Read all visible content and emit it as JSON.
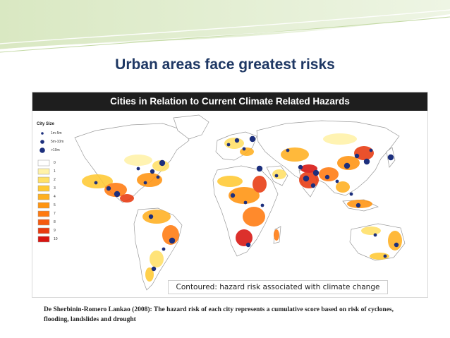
{
  "slide": {
    "title": "Urban areas face greatest risks",
    "source_note": "De Sherbinin-Romero Lankao (2008): The hazard risk of each city represents a cumulative score based on risk of cyclones, flooding, landslides and drought"
  },
  "map": {
    "header": "Cities in Relation to Current Climate Related Hazards",
    "caption": "Contoured: hazard risk associated with climate change",
    "legend": {
      "title": "City Size",
      "city_sizes": [
        {
          "label": "1m-5m",
          "size": "small"
        },
        {
          "label": "5m-10m",
          "size": "medium"
        },
        {
          "label": ">10m",
          "size": "large"
        }
      ],
      "hazard_classes": [
        {
          "label": "0",
          "color": "#ffffff"
        },
        {
          "label": "1",
          "color": "#fff2a8"
        },
        {
          "label": "2",
          "color": "#ffe066"
        },
        {
          "label": "3",
          "color": "#ffc933"
        },
        {
          "label": "4",
          "color": "#ffb020"
        },
        {
          "label": "5",
          "color": "#ff9410"
        },
        {
          "label": "7",
          "color": "#ff7a10"
        },
        {
          "label": "8",
          "color": "#f55a10"
        },
        {
          "label": "9",
          "color": "#e83a10"
        },
        {
          "label": "10",
          "color": "#d81410"
        }
      ]
    },
    "colors": {
      "land": "#ffffff",
      "outline": "#9a9a9a",
      "city_dot": "#1c2f7d"
    }
  }
}
